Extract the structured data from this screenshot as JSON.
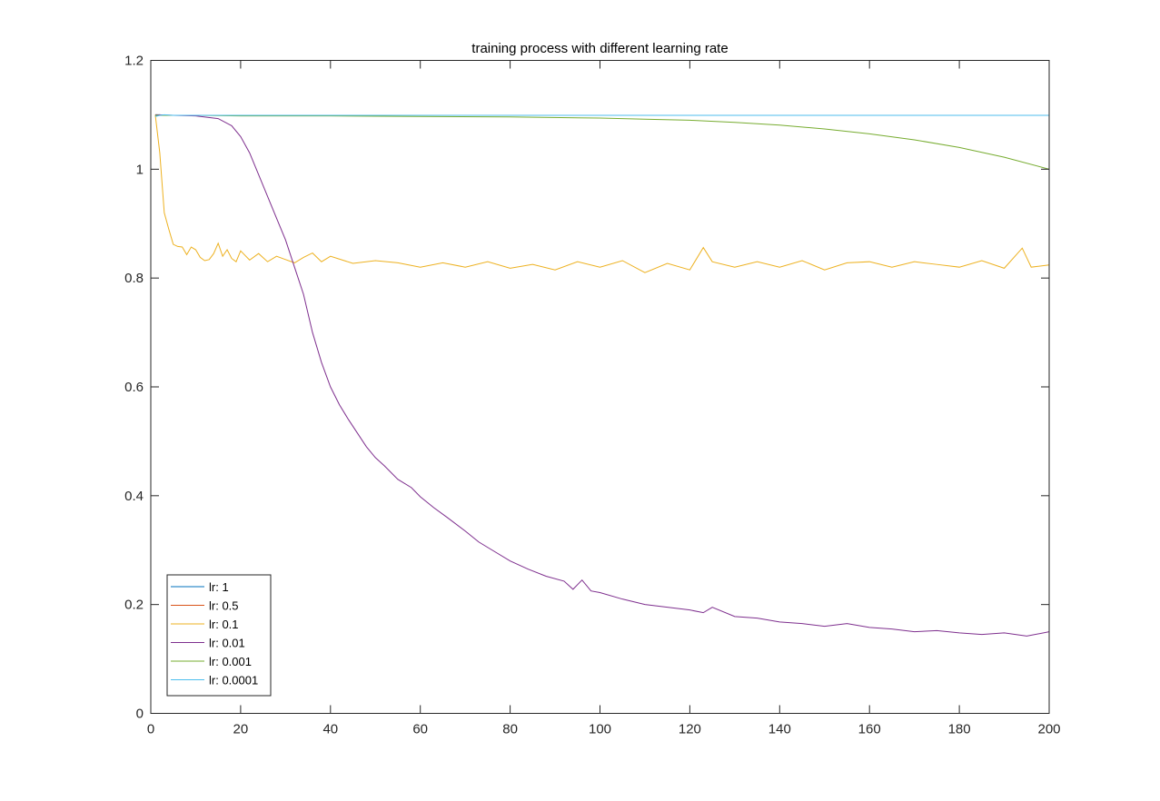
{
  "chart_data": {
    "type": "line",
    "title": "training process with different learning rate",
    "xlabel": "",
    "ylabel": "",
    "xlim": [
      0,
      200
    ],
    "ylim": [
      0,
      1.2
    ],
    "xticks": [
      0,
      20,
      40,
      60,
      80,
      100,
      120,
      140,
      160,
      180,
      200
    ],
    "yticks": [
      0,
      0.2,
      0.4,
      0.6,
      0.8,
      1,
      1.2
    ],
    "grid": false,
    "legend_location": "bottom-left",
    "series": [
      {
        "name": "lr: 1",
        "color": "#0072BD",
        "x": [
          1,
          2,
          3,
          5,
          10,
          20,
          50,
          100,
          150,
          200
        ],
        "y": [
          1.1,
          1.1,
          1.099,
          1.099,
          1.099,
          1.099,
          1.099,
          1.099,
          1.099,
          1.099
        ]
      },
      {
        "name": "lr: 0.5",
        "color": "#D95319",
        "x": [
          1,
          2,
          3,
          5,
          10,
          20,
          50,
          100,
          150,
          200
        ],
        "y": [
          1.099,
          1.1,
          1.099,
          1.099,
          1.099,
          1.099,
          1.099,
          1.099,
          1.099,
          1.099
        ]
      },
      {
        "name": "lr: 0.1",
        "color": "#EDB120",
        "x": [
          1,
          2,
          3,
          4,
          5,
          6,
          7,
          8,
          9,
          10,
          11,
          12,
          13,
          14,
          15,
          16,
          17,
          18,
          19,
          20,
          22,
          24,
          26,
          28,
          30,
          32,
          34,
          36,
          38,
          40,
          45,
          50,
          55,
          60,
          65,
          70,
          75,
          80,
          85,
          90,
          95,
          100,
          105,
          110,
          115,
          120,
          123,
          125,
          130,
          135,
          140,
          145,
          150,
          155,
          160,
          165,
          170,
          175,
          180,
          185,
          190,
          194,
          196,
          200
        ],
        "y": [
          1.1,
          1.03,
          0.92,
          0.89,
          0.862,
          0.858,
          0.857,
          0.843,
          0.857,
          0.852,
          0.838,
          0.832,
          0.834,
          0.845,
          0.864,
          0.84,
          0.852,
          0.836,
          0.83,
          0.85,
          0.833,
          0.845,
          0.83,
          0.84,
          0.834,
          0.828,
          0.838,
          0.846,
          0.83,
          0.84,
          0.827,
          0.832,
          0.828,
          0.82,
          0.828,
          0.82,
          0.83,
          0.818,
          0.825,
          0.815,
          0.83,
          0.82,
          0.832,
          0.81,
          0.827,
          0.815,
          0.856,
          0.83,
          0.82,
          0.83,
          0.82,
          0.832,
          0.815,
          0.828,
          0.83,
          0.82,
          0.83,
          0.825,
          0.82,
          0.832,
          0.818,
          0.855,
          0.82,
          0.824
        ]
      },
      {
        "name": "lr: 0.01",
        "color": "#7E2F8E",
        "x": [
          1,
          5,
          10,
          15,
          18,
          20,
          22,
          24,
          26,
          28,
          30,
          32,
          34,
          36,
          38,
          40,
          42,
          44,
          46,
          48,
          50,
          52,
          55,
          58,
          60,
          63,
          66,
          70,
          73,
          76,
          80,
          84,
          88,
          92,
          94,
          96,
          98,
          100,
          105,
          110,
          115,
          120,
          123,
          125,
          130,
          135,
          140,
          145,
          150,
          155,
          160,
          165,
          170,
          175,
          180,
          185,
          190,
          195,
          200
        ],
        "y": [
          1.1,
          1.099,
          1.098,
          1.093,
          1.08,
          1.06,
          1.03,
          0.99,
          0.95,
          0.91,
          0.87,
          0.82,
          0.77,
          0.7,
          0.645,
          0.6,
          0.567,
          0.54,
          0.515,
          0.49,
          0.47,
          0.455,
          0.43,
          0.415,
          0.398,
          0.378,
          0.36,
          0.335,
          0.315,
          0.3,
          0.28,
          0.265,
          0.252,
          0.243,
          0.228,
          0.245,
          0.225,
          0.222,
          0.21,
          0.2,
          0.195,
          0.19,
          0.185,
          0.195,
          0.178,
          0.175,
          0.168,
          0.165,
          0.16,
          0.165,
          0.158,
          0.155,
          0.15,
          0.152,
          0.148,
          0.145,
          0.148,
          0.142,
          0.15
        ]
      },
      {
        "name": "lr: 0.001",
        "color": "#77AC30",
        "x": [
          1,
          10,
          20,
          40,
          60,
          80,
          100,
          110,
          120,
          130,
          140,
          150,
          160,
          170,
          180,
          190,
          200
        ],
        "y": [
          1.099,
          1.099,
          1.098,
          1.098,
          1.097,
          1.096,
          1.094,
          1.092,
          1.09,
          1.086,
          1.081,
          1.074,
          1.065,
          1.054,
          1.04,
          1.022,
          1.0
        ]
      },
      {
        "name": "lr: 0.0001",
        "color": "#4DBEEE",
        "x": [
          1,
          2,
          3,
          5,
          10,
          50,
          100,
          150,
          200
        ],
        "y": [
          1.097,
          1.099,
          1.1,
          1.099,
          1.099,
          1.099,
          1.099,
          1.099,
          1.099
        ]
      }
    ]
  }
}
